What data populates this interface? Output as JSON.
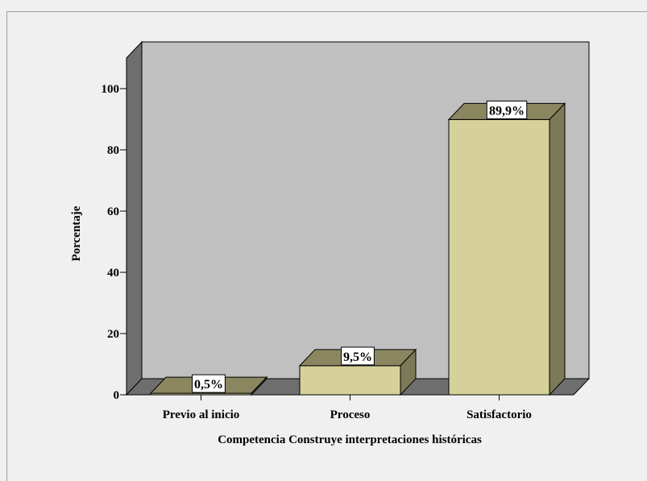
{
  "chart_data": {
    "type": "bar",
    "categories": [
      "Previo al inicio",
      "Proceso",
      "Satisfactorio"
    ],
    "values": [
      0.5,
      9.5,
      89.9
    ],
    "data_labels": [
      "0,5%",
      "9,5%",
      "89,9%"
    ],
    "xlabel": "Competencia Construye interpretaciones históricas",
    "ylabel": "Porcentaje",
    "ylim": [
      0,
      100
    ],
    "yticks": [
      0,
      20,
      40,
      60,
      80,
      100
    ],
    "ytick_labels": [
      "0",
      "20",
      "40",
      "60",
      "80",
      "100"
    ],
    "grid": false,
    "legend": "none",
    "style": "3d",
    "colors": {
      "bar_front": "#d6d19a",
      "bar_top": "#8a8660",
      "bar_side": "#7c7958",
      "back_wall": "#c0c0c0",
      "side_wall": "#6e6e6e",
      "floor": "#6e6e6e",
      "background": "#f0f0f0"
    }
  }
}
